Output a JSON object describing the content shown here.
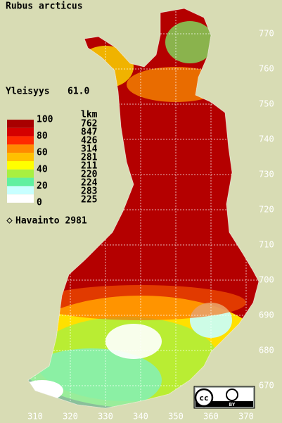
{
  "title": "Rubus arcticus",
  "frequency": {
    "label": "Yleisyys",
    "value": "61.0"
  },
  "legend": {
    "levels": [
      100,
      80,
      60,
      40,
      20,
      0
    ],
    "count_header": "lkm",
    "counts": [
      762,
      847,
      426,
      314,
      281,
      211,
      220,
      224,
      283,
      225
    ],
    "colors": [
      "#a80000",
      "#d40000",
      "#ff2a00",
      "#ff8a00",
      "#ffc000",
      "#ffff00",
      "#a8f040",
      "#60f0a0",
      "#c8ffff",
      "#ffffff"
    ]
  },
  "observations": "Havainto 2981",
  "x_ticks": [
    310,
    320,
    330,
    340,
    350,
    360,
    370
  ],
  "y_ticks": [
    670,
    680,
    690,
    700,
    710,
    720,
    730,
    740,
    750,
    760,
    770
  ],
  "license": {
    "cc": "cc",
    "by": "BY"
  }
}
